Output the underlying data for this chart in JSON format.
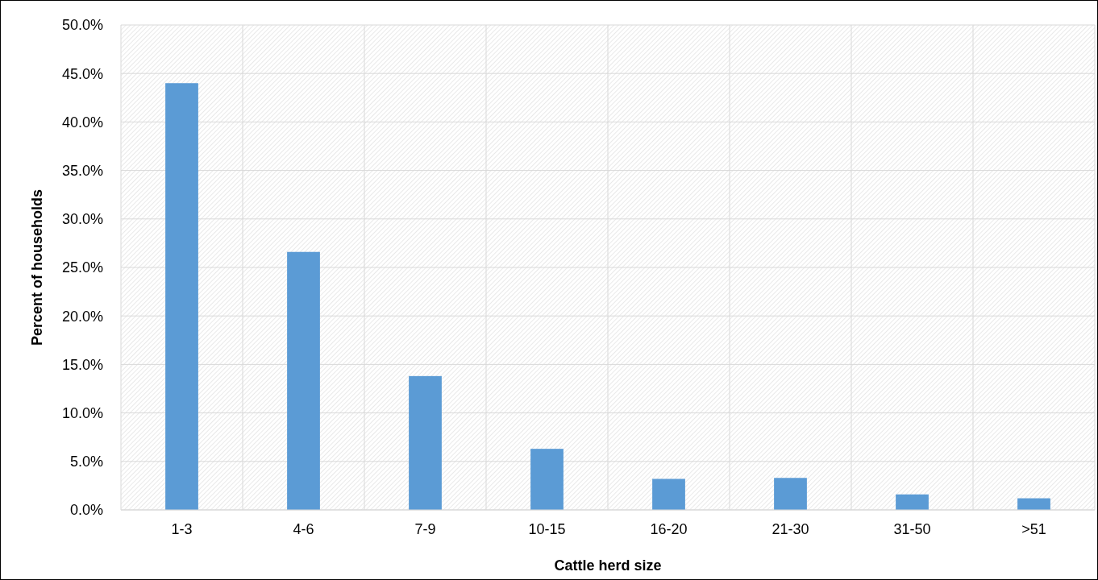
{
  "chart_data": {
    "type": "bar",
    "xlabel": "Cattle herd size",
    "ylabel": "Percent of households",
    "categories": [
      "1-3",
      "4-6",
      "7-9",
      "10-15",
      "16-20",
      "21-30",
      "31-50",
      ">51"
    ],
    "values": [
      44.0,
      26.6,
      13.8,
      6.3,
      3.2,
      3.3,
      1.6,
      1.2
    ],
    "color": "#5b9bd5",
    "ylim": [
      0,
      50
    ],
    "yticks": [
      {
        "value": 0,
        "label": "0.0%"
      },
      {
        "value": 5,
        "label": "5.0%"
      },
      {
        "value": 10,
        "label": "10.0%"
      },
      {
        "value": 15,
        "label": "15.0%"
      },
      {
        "value": 20,
        "label": "20.0%"
      },
      {
        "value": 25,
        "label": "25.0%"
      },
      {
        "value": 30,
        "label": "30.0%"
      },
      {
        "value": 35,
        "label": "35.0%"
      },
      {
        "value": 40,
        "label": "40.0%"
      },
      {
        "value": 45,
        "label": "45.0%"
      },
      {
        "value": 50,
        "label": "50.0%"
      }
    ],
    "grid": true
  }
}
